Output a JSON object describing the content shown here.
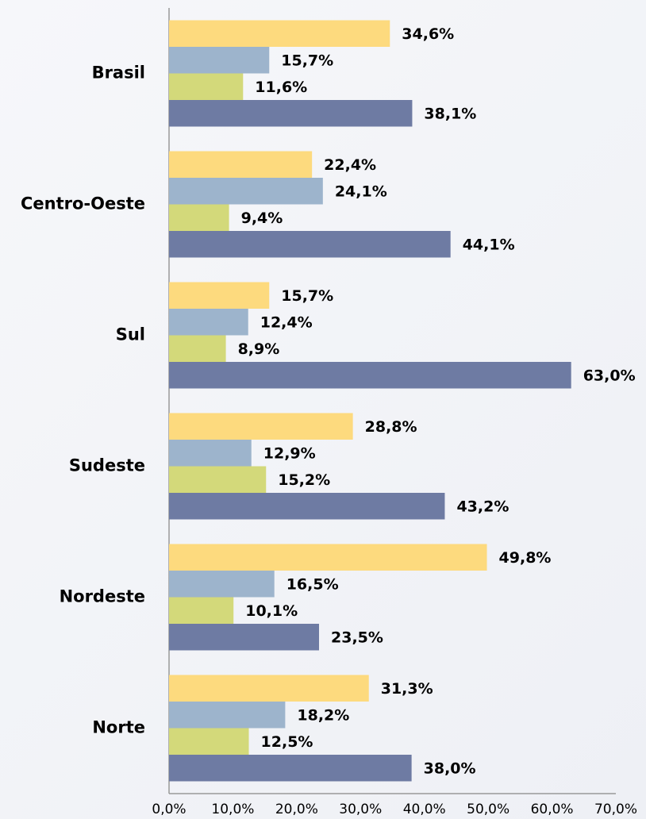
{
  "chart_data": {
    "type": "hbar",
    "categories": [
      "Brasil",
      "Centro-Oeste",
      "Sul",
      "Sudeste",
      "Nordeste",
      "Norte"
    ],
    "series": [
      {
        "color": "#FDDA7E",
        "values": [
          34.6,
          22.4,
          15.7,
          28.8,
          49.8,
          31.3
        ],
        "value_labels": [
          "34,6%",
          "22,4%",
          "15,7%",
          "28,8%",
          "49,8%",
          "31,3%"
        ]
      },
      {
        "color": "#9DB4CC",
        "values": [
          15.7,
          24.1,
          12.4,
          12.9,
          16.5,
          18.2
        ],
        "value_labels": [
          "15,7%",
          "24,1%",
          "12,4%",
          "12,9%",
          "16,5%",
          "18,2%"
        ]
      },
      {
        "color": "#D3D97A",
        "values": [
          11.6,
          9.4,
          8.9,
          15.2,
          10.1,
          12.5
        ],
        "value_labels": [
          "11,6%",
          "9,4%",
          "8,9%",
          "15,2%",
          "10,1%",
          "12,5%"
        ]
      },
      {
        "color": "#6E7BA3",
        "values": [
          38.1,
          44.1,
          63.0,
          43.2,
          23.5,
          38.0
        ],
        "value_labels": [
          "38,1%",
          "44,1%",
          "63,0%",
          "43,2%",
          "23,5%",
          "38,0%"
        ]
      }
    ],
    "xlim": [
      0,
      70
    ],
    "xticks": [
      {
        "value": 0,
        "label": "0,0%"
      },
      {
        "value": 10,
        "label": "10,0%"
      },
      {
        "value": 20,
        "label": "20,0%"
      },
      {
        "value": 30,
        "label": "30,0%"
      },
      {
        "value": 40,
        "label": "40,0%"
      },
      {
        "value": 50,
        "label": "50,0%"
      },
      {
        "value": 60,
        "label": "60,0%"
      },
      {
        "value": 70,
        "label": "70,0%"
      }
    ],
    "grid": false
  }
}
